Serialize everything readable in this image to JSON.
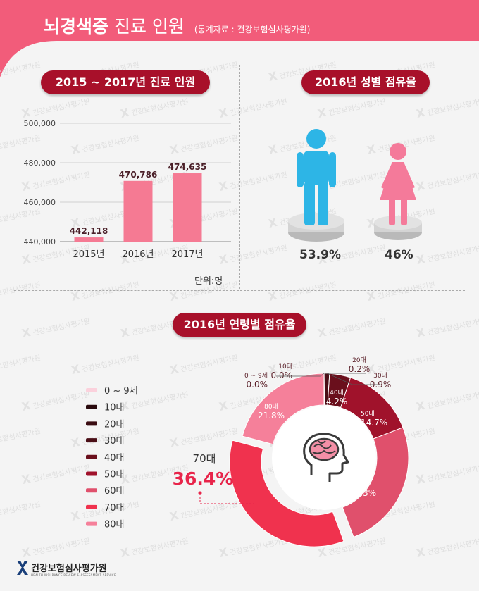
{
  "header": {
    "title_bold": "뇌경색증",
    "title_rest": "진료 인원",
    "source": "(통계자료 : 건강보험심사평가원)"
  },
  "watermark_text": "건강보험심사평가원",
  "bar_section": {
    "pill": "2015 ~ 2017년 진료 인원",
    "unit": "단위:명"
  },
  "gender_section": {
    "pill": "2016년 성별 점유율",
    "male_pct": "53.9%",
    "female_pct": "46%"
  },
  "age_section": {
    "pill": "2016년 연령별 점유율"
  },
  "footer": {
    "org": "건강보험심사평가원",
    "org_en": "HEALTH INSURANCE REVIEW & ASSESSMENT SERVICE"
  },
  "chart_data": [
    {
      "type": "bar",
      "categories": [
        "2015년",
        "2016년",
        "2017년"
      ],
      "values": [
        442118,
        470786,
        474635
      ],
      "value_labels": [
        "442,118",
        "470,786",
        "474,635"
      ],
      "ylim": [
        440000,
        500000
      ],
      "yticks": [
        440000,
        460000,
        480000,
        500000
      ],
      "ytick_labels": [
        "440,000",
        "460,000",
        "480,000",
        "500,000"
      ],
      "grid": true,
      "colors": {
        "bar": "#f57a93"
      }
    },
    {
      "type": "pie",
      "labels": [
        "0~9세",
        "10대",
        "20대",
        "30대",
        "40대",
        "50대",
        "60대",
        "70대",
        "80대"
      ],
      "legend_labels": [
        "0 ~ 9세",
        "10대",
        "20대",
        "30대",
        "40대",
        "50대",
        "60대",
        "70대",
        "80대"
      ],
      "values": [
        0.0,
        0.0,
        0.2,
        0.9,
        4.2,
        14.7,
        26.3,
        36.4,
        21.8
      ],
      "value_labels": [
        "0.0%",
        "0.0%",
        "0.2%",
        "0.9%",
        "4.2%",
        "14.7%",
        "26.3%",
        "36.4%",
        "21.8%"
      ],
      "colors": [
        "#fbd1dc",
        "#2a0a0e",
        "#3a0c12",
        "#4a0e16",
        "#6a0f1c",
        "#a0122b",
        "#e0506c",
        "#f0324e",
        "#f5809a"
      ],
      "legend_placement": "left"
    }
  ]
}
